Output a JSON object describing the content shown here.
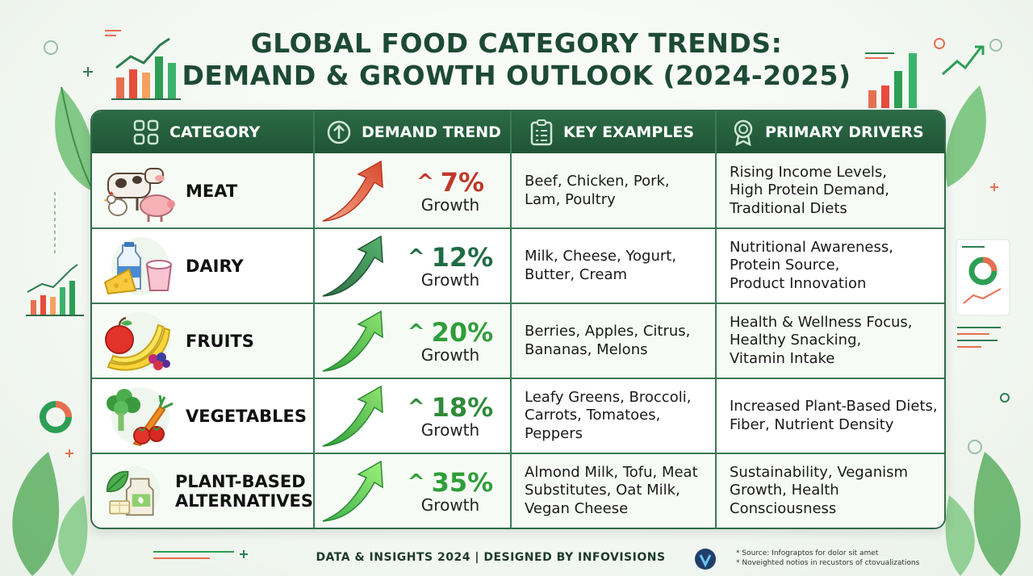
{
  "title_line1": "GLOBAL FOOD CATEGORY TRENDS:",
  "title_line2": "DEMAND & GROWTH OUTLOOK (2024-2025)",
  "headers": {
    "category": "CATEGORY",
    "demand": "DEMAND TREND",
    "examples": "KEY EXAMPLES",
    "drivers": "PRIMARY DRIVERS"
  },
  "rows": [
    {
      "name_l1": "MEAT",
      "name_l2": "",
      "pct": "7%",
      "growth_label": "Growth",
      "color": "#c0392b",
      "examples": [
        "Beef, Chicken, Pork,",
        "Lam, Poultry",
        ""
      ],
      "drivers": [
        "Rising Income Levels,",
        "High Protein Demand,",
        "Traditional Diets"
      ]
    },
    {
      "name_l1": "DAIRY",
      "name_l2": "",
      "pct": "12%",
      "growth_label": "Growth",
      "color": "#2e7d4f",
      "examples": [
        "Milk, Cheese, Yogurt,",
        "Butter, Cream",
        ""
      ],
      "drivers": [
        "Nutritional Awareness,",
        "Protein Source,",
        "Product Innovation"
      ]
    },
    {
      "name_l1": "FRUITS",
      "name_l2": "",
      "pct": "20%",
      "growth_label": "Growth",
      "color": "#2f9e3a",
      "examples": [
        "Berries, Apples, Citrus,",
        "Bananas, Melons",
        ""
      ],
      "drivers": [
        "Health & Wellness Focus,",
        "Healthy Snacking,",
        "Vitamin Intake"
      ]
    },
    {
      "name_l1": "VEGETABLES",
      "name_l2": "",
      "pct": "18%",
      "growth_label": "Growth",
      "color": "#2f8a3a",
      "examples": [
        "Leafy Greens, Broccoli,",
        "Carrots, Tomatoes,",
        "Peppers"
      ],
      "drivers": [
        "Increased Plant-Based Diets,",
        "Fiber, Nutrient Density",
        ""
      ]
    },
    {
      "name_l1": "PLANT-BASED",
      "name_l2": "ALTERNATIVES",
      "pct": "35%",
      "growth_label": "Growth",
      "color": "#2f9e3a",
      "examples": [
        "Almond Milk, Tofu, Meat",
        "Substitutes, Oat Milk,",
        "Vegan Cheese"
      ],
      "drivers": [
        "Sustainability, Veganism",
        "Growth, Health Consciousness",
        ""
      ]
    }
  ],
  "footer": "DATA & INSIGHTS 2024  |  DESIGNED BY INFOVISIONS",
  "footnote1": "* Source: Infograptos for dolor sit amet",
  "footnote2": "* Noveighted notios in recustors of ctovualizations",
  "icons": [
    "grid-icon",
    "arrow-up-circle-icon",
    "clipboard-icon",
    "award-icon",
    "meat-animals-icon",
    "dairy-icon",
    "fruits-icon",
    "vegetables-icon",
    "plant-based-icon",
    "trend-arrow-icon",
    "logo-icon"
  ]
}
